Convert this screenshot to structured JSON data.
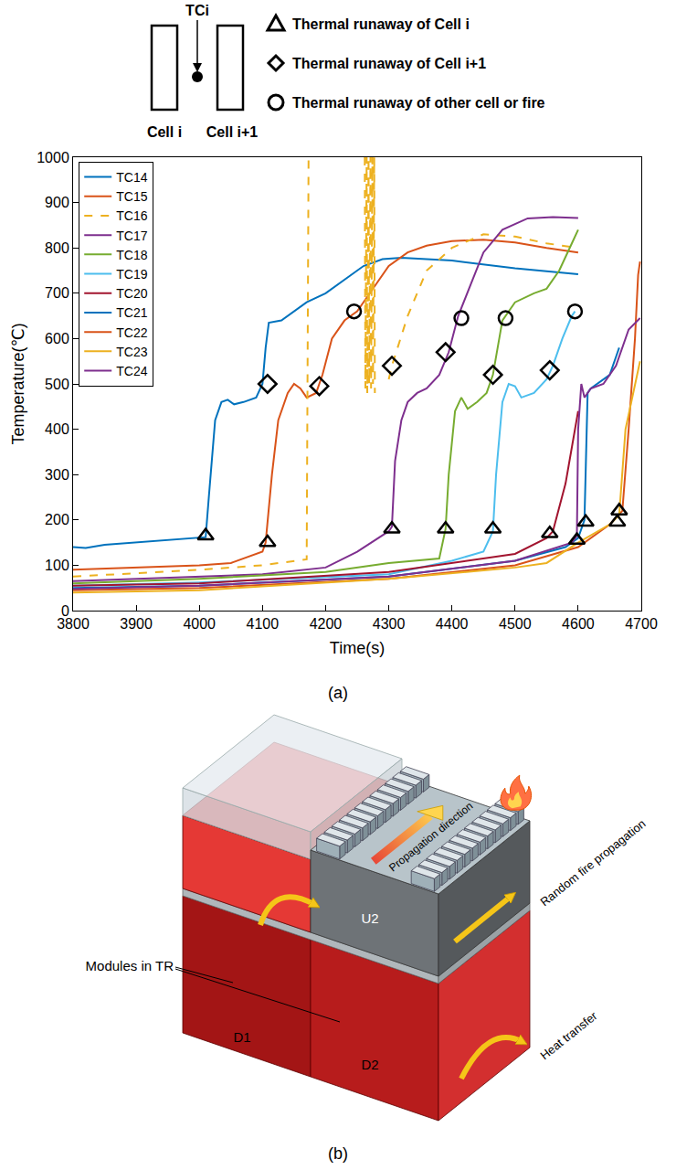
{
  "chart_data": {
    "type": "line",
    "x_label": "Time(s)",
    "y_label": "Temperature(℃)",
    "xlim": [
      3800,
      4700
    ],
    "xticks": [
      3800,
      3900,
      4000,
      4100,
      4200,
      4300,
      4400,
      4500,
      4600,
      4700
    ],
    "ylim": [
      0,
      1000
    ],
    "yticks": [
      0,
      100,
      200,
      300,
      400,
      500,
      600,
      700,
      800,
      900,
      1000
    ],
    "grid": false,
    "legend": "top-left",
    "series": [
      {
        "name": "TC14",
        "color": "#0072BD",
        "line_style": "solid",
        "x": [
          3800,
          3820,
          3850,
          3900,
          3950,
          4000,
          4010,
          4015,
          4025,
          4035,
          4045,
          4055,
          4070,
          4090,
          4100,
          4105,
          4110,
          4130,
          4150,
          4170,
          4200,
          4230,
          4260,
          4290,
          4320,
          4400,
          4500,
          4600
        ],
        "values": [
          140,
          138,
          145,
          150,
          155,
          160,
          162,
          250,
          420,
          460,
          465,
          455,
          460,
          470,
          500,
          580,
          635,
          640,
          660,
          680,
          700,
          730,
          760,
          775,
          778,
          772,
          755,
          742
        ]
      },
      {
        "name": "TC15",
        "color": "#D95319",
        "line_style": "solid",
        "x": [
          3800,
          3900,
          4000,
          4050,
          4100,
          4105,
          4115,
          4125,
          4140,
          4150,
          4160,
          4170,
          4185,
          4195,
          4210,
          4230,
          4250,
          4270,
          4300,
          4330,
          4360,
          4400,
          4450,
          4500,
          4550,
          4600
        ],
        "values": [
          90,
          95,
          100,
          105,
          130,
          150,
          300,
          420,
          480,
          500,
          490,
          470,
          480,
          520,
          600,
          640,
          660,
          700,
          760,
          790,
          805,
          815,
          818,
          812,
          800,
          790
        ]
      },
      {
        "name": "TC16",
        "color": "#EDB120",
        "line_style": "dashed",
        "x": [
          3800,
          3900,
          4000,
          4100,
          4170,
          4173,
          4220,
          4262,
          4263,
          4265,
          4266,
          4268,
          4269,
          4271,
          4272,
          4274,
          4275,
          4277,
          4278,
          4290,
          4300,
          4305,
          4330,
          4360,
          4400,
          4450,
          4500,
          4550,
          4600
        ],
        "values": [
          75,
          82,
          90,
          100,
          113,
          1000,
          null,
          1000,
          490,
          1000,
          480,
          1000,
          500,
          1000,
          490,
          1000,
          500,
          1000,
          480,
          null,
          510,
          540,
          650,
          750,
          800,
          830,
          825,
          810,
          800
        ]
      },
      {
        "name": "TC17",
        "color": "#7E2F8E",
        "line_style": "solid",
        "x": [
          3800,
          3900,
          4000,
          4100,
          4200,
          4250,
          4300,
          4305,
          4310,
          4320,
          4330,
          4345,
          4360,
          4380,
          4395,
          4410,
          4430,
          4450,
          4480,
          4520,
          4560,
          4600
        ],
        "values": [
          65,
          70,
          75,
          80,
          95,
          130,
          175,
          185,
          330,
          420,
          460,
          480,
          490,
          520,
          570,
          650,
          720,
          790,
          840,
          865,
          868,
          866
        ]
      },
      {
        "name": "TC18",
        "color": "#77AC30",
        "line_style": "solid",
        "x": [
          3800,
          4000,
          4200,
          4300,
          4380,
          4390,
          4395,
          4405,
          4415,
          4425,
          4440,
          4455,
          4465,
          4475,
          4480,
          4500,
          4530,
          4550,
          4570,
          4590,
          4600
        ],
        "values": [
          60,
          70,
          85,
          105,
          115,
          180,
          300,
          440,
          470,
          445,
          460,
          480,
          520,
          600,
          640,
          680,
          700,
          710,
          750,
          810,
          840
        ]
      },
      {
        "name": "TC19",
        "color": "#4DBEEE",
        "line_style": "solid",
        "x": [
          3800,
          4000,
          4300,
          4400,
          4450,
          4465,
          4470,
          4480,
          4490,
          4500,
          4510,
          4530,
          4550,
          4560,
          4575,
          4590,
          4595
        ],
        "values": [
          55,
          62,
          80,
          110,
          130,
          175,
          300,
          460,
          500,
          495,
          470,
          480,
          510,
          540,
          600,
          650,
          660
        ]
      },
      {
        "name": "TC20",
        "color": "#A2142F",
        "line_style": "solid",
        "x": [
          3800,
          4000,
          4300,
          4400,
          4500,
          4550,
          4560,
          4580,
          4595,
          4600
        ],
        "values": [
          55,
          60,
          85,
          105,
          125,
          160,
          175,
          280,
          400,
          440
        ]
      },
      {
        "name": "TC21",
        "color": "#0072BD",
        "line_style": "solid",
        "x": [
          3800,
          4000,
          4300,
          4500,
          4580,
          4600,
          4610,
          4615,
          4620,
          4630,
          4640,
          4650,
          4660,
          4665
        ],
        "values": [
          50,
          55,
          75,
          110,
          140,
          160,
          200,
          480,
          490,
          500,
          510,
          520,
          560,
          580
        ]
      },
      {
        "name": "TC22",
        "color": "#D95319",
        "line_style": "solid",
        "x": [
          3800,
          4000,
          4300,
          4500,
          4600,
          4650,
          4670,
          4680,
          4690,
          4695,
          4698
        ],
        "values": [
          45,
          50,
          70,
          100,
          140,
          190,
          220,
          400,
          600,
          740,
          770
        ]
      },
      {
        "name": "TC23",
        "color": "#EDB120",
        "line_style": "solid",
        "x": [
          3800,
          4000,
          4300,
          4500,
          4550,
          4600,
          4650,
          4665,
          4675,
          4690,
          4698
        ],
        "values": [
          40,
          45,
          70,
          95,
          105,
          150,
          190,
          210,
          400,
          500,
          550
        ]
      },
      {
        "name": "TC24",
        "color": "#7E2F8E",
        "line_style": "solid",
        "x": [
          3800,
          4000,
          4300,
          4500,
          4590,
          4598,
          4600,
          4605,
          4610,
          4620,
          4640,
          4660,
          4680,
          4698
        ],
        "values": [
          48,
          55,
          75,
          110,
          150,
          165,
          400,
          500,
          470,
          490,
          500,
          540,
          620,
          645
        ]
      }
    ],
    "markers": [
      {
        "name": "Thermal runaway of Cell i",
        "marker": "triangle",
        "color": "#000000",
        "x": [
          4010,
          4108,
          4305,
          4390,
          4465,
          4555,
          4598,
          4612,
          4662,
          4665
        ],
        "values": [
          165,
          150,
          180,
          180,
          180,
          170,
          155,
          195,
          195,
          220
        ]
      },
      {
        "name": "Thermal runaway of Cell i+1",
        "marker": "diamond",
        "color": "#000000",
        "x": [
          4108,
          4190,
          4305,
          4390,
          4465,
          4555
        ],
        "values": [
          500,
          495,
          540,
          570,
          520,
          530
        ]
      },
      {
        "name": "Thermal runaway of other cell or fire",
        "marker": "circle",
        "color": "#000000",
        "x": [
          4245,
          4415,
          4485,
          4595
        ],
        "values": [
          660,
          645,
          645,
          660
        ]
      }
    ]
  },
  "schematic": {
    "sensor": "TCi",
    "cell_left": "Cell i",
    "cell_right": "Cell i+1"
  },
  "diagram": {
    "modules": "Modules in TR",
    "d1": "D1",
    "d2": "D2",
    "u2": "U2",
    "propagation": "Propagation direction",
    "fire": "Random fire propagation",
    "heat": "Heat transfer"
  },
  "captions": {
    "a": "(a)",
    "b": "(b)"
  }
}
